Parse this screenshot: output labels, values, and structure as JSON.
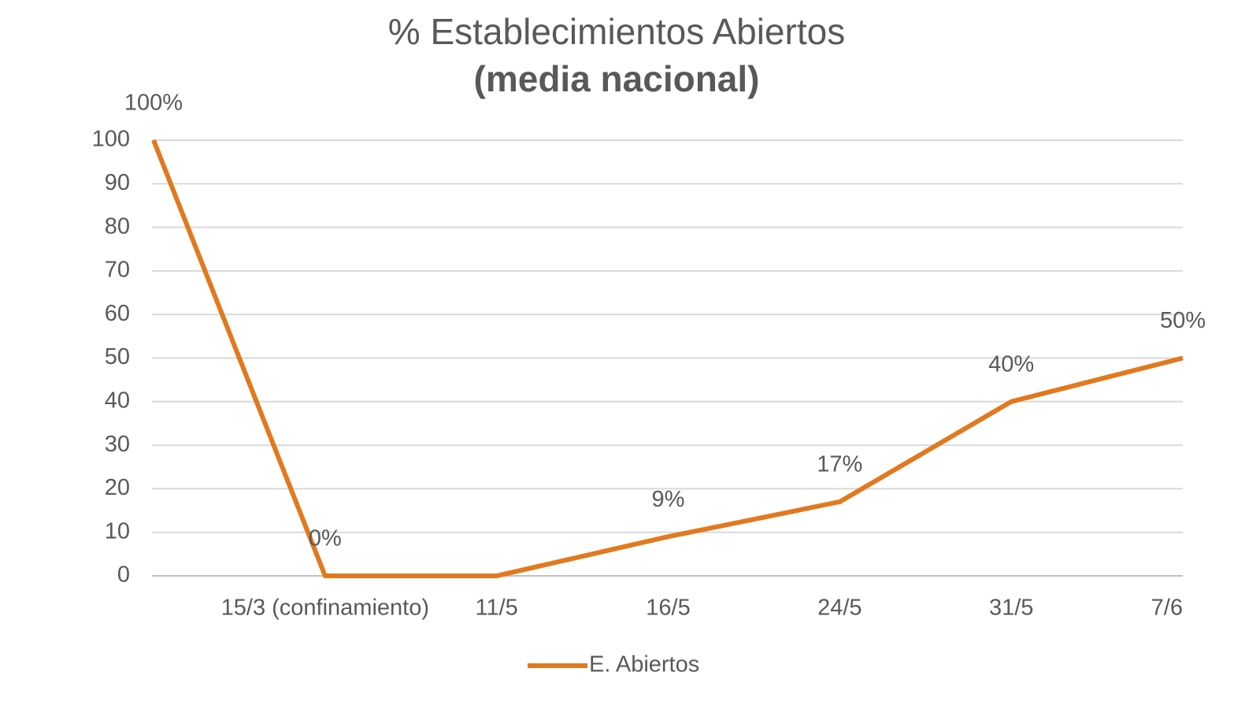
{
  "chart_data": {
    "type": "line",
    "title": "% Establecimientos Abiertos",
    "subtitle": "(media nacional)",
    "categories": [
      null,
      "15/3 (confinamiento)",
      "11/5",
      "16/5",
      "24/5",
      "31/5",
      "7/6"
    ],
    "series": [
      {
        "name": "E. Abiertos",
        "color": "#e2791e",
        "values": [
          100,
          0,
          0,
          9,
          17,
          40,
          50
        ],
        "value_labels": [
          "100%",
          "0%",
          null,
          "9%",
          "17%",
          "40%",
          "50%"
        ]
      }
    ],
    "ylim": [
      0,
      100
    ],
    "yticks": [
      0,
      10,
      20,
      30,
      40,
      50,
      60,
      70,
      80,
      90,
      100
    ],
    "grid": true,
    "legend": "bottom"
  }
}
